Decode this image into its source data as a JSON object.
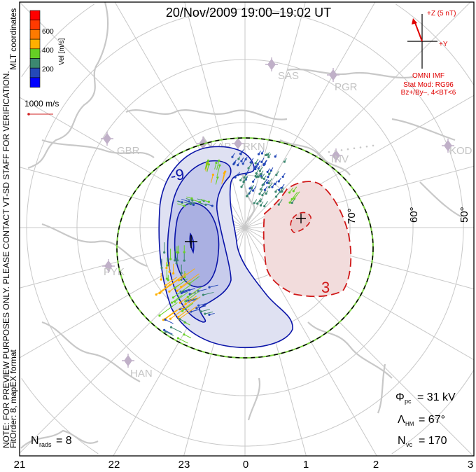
{
  "title": "20/Nov/2009  19:00–19:02  UT",
  "side_note": {
    "line1": "NOTE: FOR PREVIEW PURPOSES ONLY. PLEASE CONTACT VT-SD STAFF FOR VERIFICATION.",
    "line2": "FitOrder: 8, mapEX format",
    "coords": "MLT coordinates"
  },
  "colorbar": {
    "label": "Vel [m/s]",
    "ticks": [
      "600",
      "400",
      "200"
    ],
    "colors": [
      "#ff0000",
      "#ff3a00",
      "#ff7a00",
      "#ffb000",
      "#66d024",
      "#3c8870",
      "#2448b8",
      "#0000ff"
    ]
  },
  "scale_vector": {
    "label": "1000 m/s",
    "color": "#d02020"
  },
  "imf": {
    "z_label": "+Z (5 nT)",
    "y_label": "+Y",
    "source": "OMNI IMF",
    "model": "Stat Mod: RG96",
    "condition": "Bz+/By–, 4<BT<6",
    "color": "#e00000"
  },
  "stations": [
    "SAS",
    "PGR",
    "KOD",
    "INV",
    "RKN",
    "KAP",
    "GBR",
    "PYK",
    "HAN"
  ],
  "latitude_labels": [
    "70°",
    "60°",
    "50°"
  ],
  "mlt_labels": [
    "21",
    "22",
    "23",
    "0",
    "1",
    "2",
    "3"
  ],
  "contours": {
    "negative_label": "-9",
    "positive_label": "3",
    "negative_color": "#0a14a8",
    "positive_color": "#d01818"
  },
  "stats": {
    "phi_symbol": "Φ",
    "phi_sub": "pc",
    "phi_value": "= 31 kV",
    "lambda_symbol": "Λ",
    "lambda_sub": "HM",
    "lambda_value": "= 67°",
    "nvc_symbol": "N",
    "nvc_sub": "vc",
    "nvc_value": "= 170",
    "nrads_symbol": "N",
    "nrads_sub": "rads",
    "nrads_value": "= 8"
  }
}
